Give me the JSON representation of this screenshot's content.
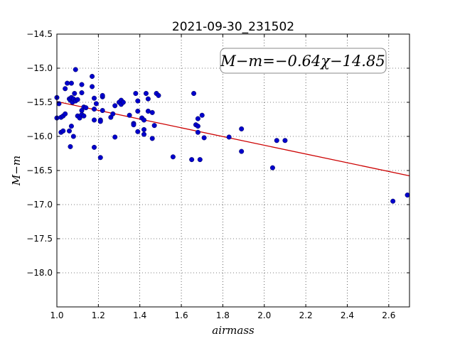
{
  "chart_data": {
    "type": "scatter",
    "title": "2021-09-30_231502",
    "xlabel": "airmass",
    "ylabel": "M−m",
    "xlim": [
      1.0,
      2.7
    ],
    "ylim": [
      -18.5,
      -14.5
    ],
    "y_inverted": true,
    "grid": true,
    "x_ticks": [
      1.0,
      1.2,
      1.4,
      1.6,
      1.8,
      2.0,
      2.2,
      2.4,
      2.6
    ],
    "x_tick_labels": [
      "1.0",
      "1.2",
      "1.4",
      "1.6",
      "1.8",
      "2.0",
      "2.2",
      "2.4",
      "2.6"
    ],
    "y_ticks": [
      -14.5,
      -15.0,
      -15.5,
      -16.0,
      -16.5,
      -17.0,
      -17.5,
      -18.0
    ],
    "y_tick_labels": [
      "−14.5",
      "−15.0",
      "−15.5",
      "−16.0",
      "−16.5",
      "−17.0",
      "−17.5",
      "−18.0"
    ],
    "annotation": "M−m=−0.64χ−14.85",
    "fit": {
      "slope": -0.64,
      "intercept": -14.85,
      "color": "#cc0000"
    },
    "point_color": "#0000cc",
    "points": [
      [
        1.0,
        -15.43
      ],
      [
        1.01,
        -15.52
      ],
      [
        1.0,
        -15.73
      ],
      [
        1.02,
        -15.72
      ],
      [
        1.03,
        -15.7
      ],
      [
        1.04,
        -15.67
      ],
      [
        1.02,
        -15.94
      ],
      [
        1.03,
        -15.92
      ],
      [
        1.06,
        -15.92
      ],
      [
        1.04,
        -15.3
      ],
      [
        1.05,
        -15.22
      ],
      [
        1.06,
        -15.45
      ],
      [
        1.065,
        -15.47
      ],
      [
        1.07,
        -15.43
      ],
      [
        1.075,
        -15.5
      ],
      [
        1.08,
        -15.45
      ],
      [
        1.09,
        -15.48
      ],
      [
        1.1,
        -15.46
      ],
      [
        1.07,
        -15.22
      ],
      [
        1.085,
        -15.37
      ],
      [
        1.09,
        -15.02
      ],
      [
        1.07,
        -15.85
      ],
      [
        1.08,
        -16.0
      ],
      [
        1.065,
        -16.15
      ],
      [
        1.1,
        -15.7
      ],
      [
        1.11,
        -15.73
      ],
      [
        1.12,
        -15.68
      ],
      [
        1.13,
        -15.7
      ],
      [
        1.12,
        -15.62
      ],
      [
        1.13,
        -15.57
      ],
      [
        1.14,
        -15.58
      ],
      [
        1.12,
        -15.36
      ],
      [
        1.12,
        -15.24
      ],
      [
        1.17,
        -15.12
      ],
      [
        1.17,
        -15.27
      ],
      [
        1.18,
        -15.44
      ],
      [
        1.19,
        -15.52
      ],
      [
        1.18,
        -15.6
      ],
      [
        1.18,
        -15.76
      ],
      [
        1.18,
        -16.16
      ],
      [
        1.21,
        -15.76
      ],
      [
        1.21,
        -15.78
      ],
      [
        1.22,
        -15.62
      ],
      [
        1.22,
        -15.42
      ],
      [
        1.22,
        -15.4
      ],
      [
        1.21,
        -16.31
      ],
      [
        1.26,
        -15.72
      ],
      [
        1.27,
        -15.67
      ],
      [
        1.28,
        -15.55
      ],
      [
        1.28,
        -16.01
      ],
      [
        1.3,
        -15.5
      ],
      [
        1.31,
        -15.47
      ],
      [
        1.31,
        -15.53
      ],
      [
        1.32,
        -15.5
      ],
      [
        1.35,
        -15.69
      ],
      [
        1.37,
        -15.81
      ],
      [
        1.37,
        -15.83
      ],
      [
        1.38,
        -15.37
      ],
      [
        1.39,
        -15.48
      ],
      [
        1.39,
        -15.63
      ],
      [
        1.39,
        -15.93
      ],
      [
        1.41,
        -15.73
      ],
      [
        1.42,
        -15.76
      ],
      [
        1.42,
        -15.9
      ],
      [
        1.42,
        -15.97
      ],
      [
        1.43,
        -15.37
      ],
      [
        1.44,
        -15.45
      ],
      [
        1.44,
        -15.63
      ],
      [
        1.46,
        -15.65
      ],
      [
        1.46,
        -16.03
      ],
      [
        1.47,
        -15.84
      ],
      [
        1.48,
        -15.37
      ],
      [
        1.49,
        -15.4
      ],
      [
        1.56,
        -16.3
      ],
      [
        1.65,
        -16.34
      ],
      [
        1.66,
        -15.37
      ],
      [
        1.67,
        -15.83
      ],
      [
        1.68,
        -15.74
      ],
      [
        1.68,
        -15.85
      ],
      [
        1.68,
        -15.94
      ],
      [
        1.69,
        -16.34
      ],
      [
        1.7,
        -15.69
      ],
      [
        1.71,
        -16.02
      ],
      [
        1.83,
        -16.01
      ],
      [
        1.89,
        -15.89
      ],
      [
        1.89,
        -16.22
      ],
      [
        2.04,
        -16.46
      ],
      [
        2.06,
        -16.06
      ],
      [
        2.1,
        -16.06
      ],
      [
        2.62,
        -16.95
      ],
      [
        2.69,
        -16.86
      ]
    ]
  }
}
